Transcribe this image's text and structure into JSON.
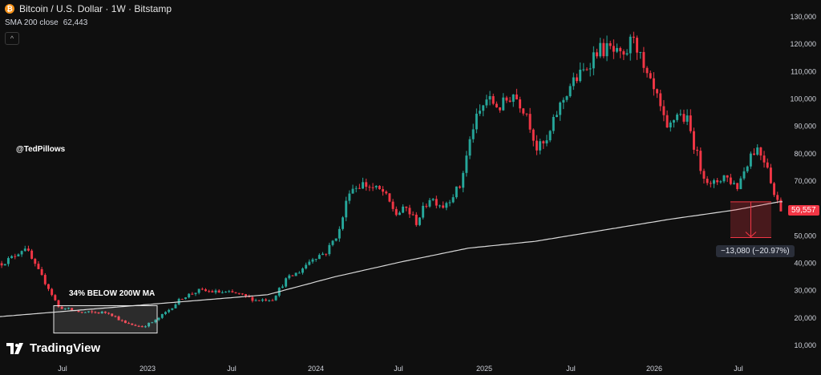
{
  "header": {
    "symbol_title": "Bitcoin / U.S. Dollar · 1W · Bitstamp",
    "sma_label": "SMA 200 close",
    "sma_value": "62,443",
    "collapse_glyph": "^"
  },
  "author": "@TedPillows",
  "annotation": "34% BELOW 200W MA",
  "branding": "TradingView",
  "price_label": "59,557",
  "measure_label": "−13,080 (−20.97%)",
  "colors": {
    "background": "#0f0f0f",
    "up": "#26a69a",
    "down": "#f23645",
    "ma": "#d9d9d9",
    "accent": "#f7931a"
  },
  "chart_data": {
    "type": "candlestick",
    "title": "Bitcoin / U.S. Dollar · 1W · Bitstamp",
    "x_tick_labels": [
      "Jul",
      "2023",
      "Jul",
      "2024",
      "Jul",
      "2025",
      "Jul",
      "2026",
      "Jul"
    ],
    "y_ticks": [
      "130,000",
      "120,000",
      "110,000",
      "100,000",
      "90,000",
      "80,000",
      "70,000",
      "60,000",
      "50,000",
      "40,000",
      "30,000",
      "20,000",
      "10,000"
    ],
    "y_tick_values": [
      130000,
      120000,
      110000,
      100000,
      90000,
      80000,
      70000,
      60000,
      50000,
      40000,
      30000,
      20000,
      10000
    ],
    "ylim": [
      5000,
      140000
    ],
    "price_keypoints": [
      [
        0,
        40000
      ],
      [
        3,
        42000
      ],
      [
        7,
        46000
      ],
      [
        10,
        39000
      ],
      [
        14,
        31000
      ],
      [
        17,
        24000
      ],
      [
        24,
        22000
      ],
      [
        32,
        22000
      ],
      [
        37,
        18000
      ],
      [
        42,
        16800
      ],
      [
        46,
        19000
      ],
      [
        50,
        23000
      ],
      [
        54,
        27500
      ],
      [
        59,
        30000
      ],
      [
        64,
        29500
      ],
      [
        70,
        29000
      ],
      [
        76,
        26500
      ],
      [
        81,
        27000
      ],
      [
        85,
        34000
      ],
      [
        89,
        37000
      ],
      [
        93,
        42000
      ],
      [
        97,
        44000
      ],
      [
        101,
        52000
      ],
      [
        104,
        67000
      ],
      [
        108,
        69000
      ],
      [
        114,
        66000
      ],
      [
        118,
        58000
      ],
      [
        121,
        60000
      ],
      [
        124,
        55000
      ],
      [
        128,
        64000
      ],
      [
        132,
        61000
      ],
      [
        137,
        68000
      ],
      [
        141,
        90000
      ],
      [
        145,
        100000
      ],
      [
        149,
        97000
      ],
      [
        153,
        102000
      ],
      [
        157,
        95000
      ],
      [
        160,
        82000
      ],
      [
        163,
        84000
      ],
      [
        166,
        95000
      ],
      [
        170,
        105000
      ],
      [
        174,
        110000
      ],
      [
        178,
        118000
      ],
      [
        182,
        118000
      ],
      [
        186,
        114000
      ],
      [
        189,
        124000
      ],
      [
        192,
        110000
      ],
      [
        196,
        100000
      ],
      [
        199,
        88000
      ],
      [
        202,
        95000
      ],
      [
        205,
        92000
      ],
      [
        209,
        75000
      ],
      [
        212,
        68000
      ],
      [
        216,
        72000
      ],
      [
        220,
        68000
      ],
      [
        224,
        80000
      ],
      [
        226,
        82000
      ],
      [
        229,
        76000
      ],
      [
        231,
        65000
      ],
      [
        233,
        60000
      ]
    ],
    "ma_keypoints": [
      [
        0,
        20500
      ],
      [
        30,
        23500
      ],
      [
        60,
        26500
      ],
      [
        80,
        28500
      ],
      [
        100,
        35000
      ],
      [
        120,
        40500
      ],
      [
        140,
        45500
      ],
      [
        160,
        48000
      ],
      [
        180,
        52000
      ],
      [
        200,
        56000
      ],
      [
        220,
        59500
      ],
      [
        233,
        62443
      ]
    ],
    "ma_label": "SMA 200 close",
    "ma_value": 62443,
    "last_price": 59557,
    "measure": {
      "from_price": 62443,
      "to_price": 49363,
      "change": -13080,
      "change_pct": -20.97
    },
    "highlight_box": {
      "label": "34% BELOW 200W MA",
      "price_low": 14500,
      "price_high": 24500
    },
    "grid": false,
    "legend": "top-left"
  }
}
